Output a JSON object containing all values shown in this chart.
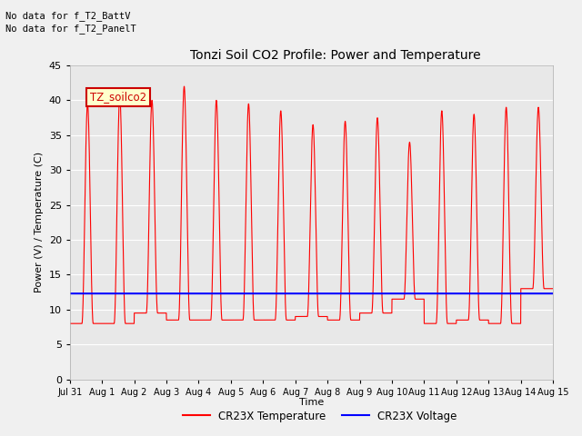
{
  "title": "Tonzi Soil CO2 Profile: Power and Temperature",
  "ylabel": "Power (V) / Temperature (C)",
  "xlabel": "Time",
  "ylim": [
    0,
    45
  ],
  "yticks": [
    0,
    5,
    10,
    15,
    20,
    25,
    30,
    35,
    40,
    45
  ],
  "xtick_labels": [
    "Jul 31",
    "Aug 1",
    "Aug 2",
    "Aug 3",
    "Aug 4",
    "Aug 5",
    "Aug 6",
    "Aug 7",
    "Aug 8",
    "Aug 9",
    "Aug 10",
    "Aug 11",
    "Aug 12",
    "Aug 13",
    "Aug 14",
    "Aug 15"
  ],
  "header_text1": "No data for f_T2_BattV",
  "header_text2": "No data for f_T2_PanelT",
  "legend_box_label": "TZ_soilco2",
  "legend_entries": [
    "CR23X Temperature",
    "CR23X Voltage"
  ],
  "legend_colors": [
    "#ff0000",
    "#0000ff"
  ],
  "bg_color": "#e8e8e8",
  "voltage_level": 12.3,
  "peaks": [
    39.5,
    40.5,
    40.0,
    42.0,
    40.0,
    39.5,
    38.5,
    36.5,
    37.0,
    37.5,
    34.0,
    38.5,
    38.0,
    39.0,
    39.0
  ],
  "mins": [
    8.0,
    8.0,
    9.5,
    8.5,
    8.5,
    8.5,
    8.5,
    9.0,
    8.5,
    9.5,
    11.5,
    8.0,
    8.5,
    8.0,
    13.0
  ]
}
